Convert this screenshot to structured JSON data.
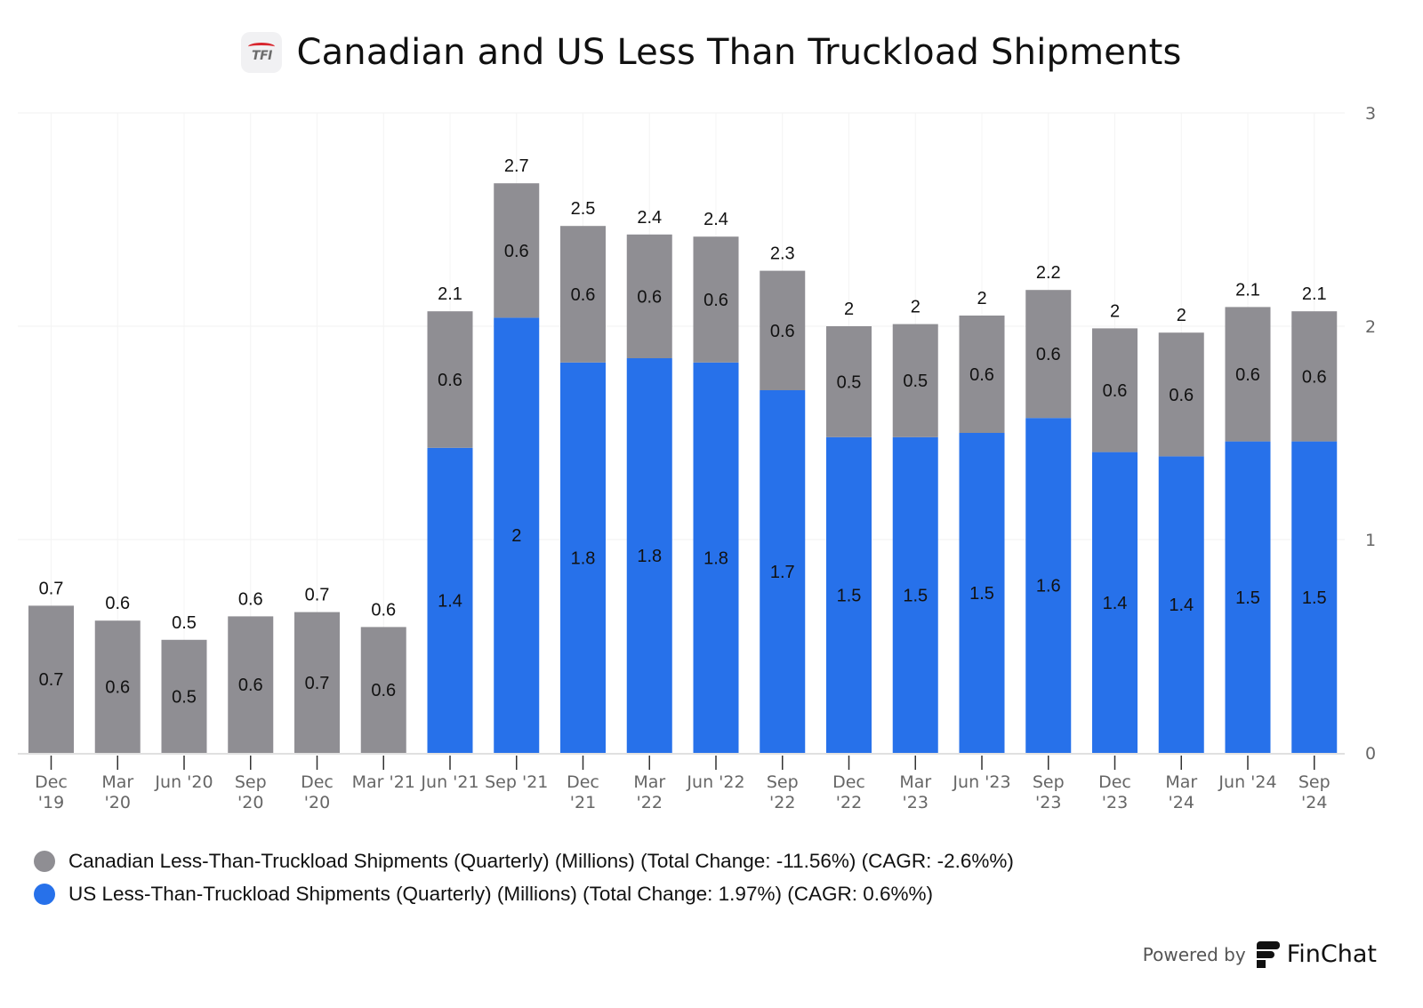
{
  "header": {
    "logo_text": "TFI",
    "title": "Canadian and US Less Than Truckload Shipments"
  },
  "colors": {
    "canadian": "#8f8e93",
    "us": "#2771ea",
    "grid": "#f0f0f0",
    "axis": "#e0e0e0"
  },
  "chart_data": {
    "type": "bar",
    "stacked": true,
    "title": "Canadian and US Less Than Truckload Shipments",
    "xlabel": "",
    "ylabel": "",
    "ylim": [
      0,
      3
    ],
    "yticks": [
      0,
      1,
      2,
      3
    ],
    "y_axis_side": "right",
    "grid": true,
    "legend_position": "bottom-left",
    "categories": [
      [
        "Dec",
        "'19"
      ],
      [
        "Mar",
        "'20"
      ],
      [
        "Jun '20"
      ],
      [
        "Sep",
        "'20"
      ],
      [
        "Dec",
        "'20"
      ],
      [
        "Mar '21"
      ],
      [
        "Jun '21"
      ],
      [
        "Sep '21"
      ],
      [
        "Dec",
        "'21"
      ],
      [
        "Mar",
        "'22"
      ],
      [
        "Jun '22"
      ],
      [
        "Sep",
        "'22"
      ],
      [
        "Dec",
        "'22"
      ],
      [
        "Mar",
        "'23"
      ],
      [
        "Jun '23"
      ],
      [
        "Sep",
        "'23"
      ],
      [
        "Dec",
        "'23"
      ],
      [
        "Mar",
        "'24"
      ],
      [
        "Jun '24"
      ],
      [
        "Sep",
        "'24"
      ]
    ],
    "series": [
      {
        "name": "US Less-Than-Truckload Shipments (Quarterly) (Millions)",
        "key": "us",
        "values": [
          0,
          0,
          0,
          0,
          0,
          0,
          1.43,
          2.04,
          1.83,
          1.85,
          1.83,
          1.7,
          1.48,
          1.48,
          1.5,
          1.57,
          1.41,
          1.39,
          1.46,
          1.46
        ],
        "labels": [
          "",
          "",
          "",
          "",
          "",
          "",
          "1.4",
          "2",
          "1.8",
          "1.8",
          "1.8",
          "1.7",
          "1.5",
          "1.5",
          "1.5",
          "1.6",
          "1.4",
          "1.4",
          "1.5",
          "1.5"
        ]
      },
      {
        "name": "Canadian Less-Than-Truckload Shipments (Quarterly) (Millions)",
        "key": "canadian",
        "values": [
          0.69,
          0.62,
          0.53,
          0.64,
          0.66,
          0.59,
          0.64,
          0.63,
          0.64,
          0.58,
          0.59,
          0.56,
          0.52,
          0.53,
          0.55,
          0.6,
          0.58,
          0.58,
          0.63,
          0.61
        ],
        "labels": [
          "0.7",
          "0.6",
          "0.5",
          "0.6",
          "0.7",
          "0.6",
          "0.6",
          "0.6",
          "0.6",
          "0.6",
          "0.6",
          "0.6",
          "0.5",
          "0.5",
          "0.6",
          "0.6",
          "0.6",
          "0.6",
          "0.6",
          "0.6"
        ]
      }
    ],
    "total_labels": [
      "0.7",
      "0.6",
      "0.5",
      "0.6",
      "0.7",
      "0.6",
      "2.1",
      "2.7",
      "2.5",
      "2.4",
      "2.4",
      "2.3",
      "2",
      "2",
      "2",
      "2.2",
      "2",
      "2",
      "2.1",
      "2.1"
    ]
  },
  "legend": [
    {
      "key": "canadian",
      "label": "Canadian Less-Than-Truckload Shipments (Quarterly) (Millions) (Total Change: -11.56%) (CAGR: -2.6%%)"
    },
    {
      "key": "us",
      "label": "US Less-Than-Truckload Shipments (Quarterly) (Millions) (Total Change: 1.97%) (CAGR: 0.6%%)"
    }
  ],
  "footer": {
    "powered_by": "Powered by",
    "brand": "FinChat"
  }
}
